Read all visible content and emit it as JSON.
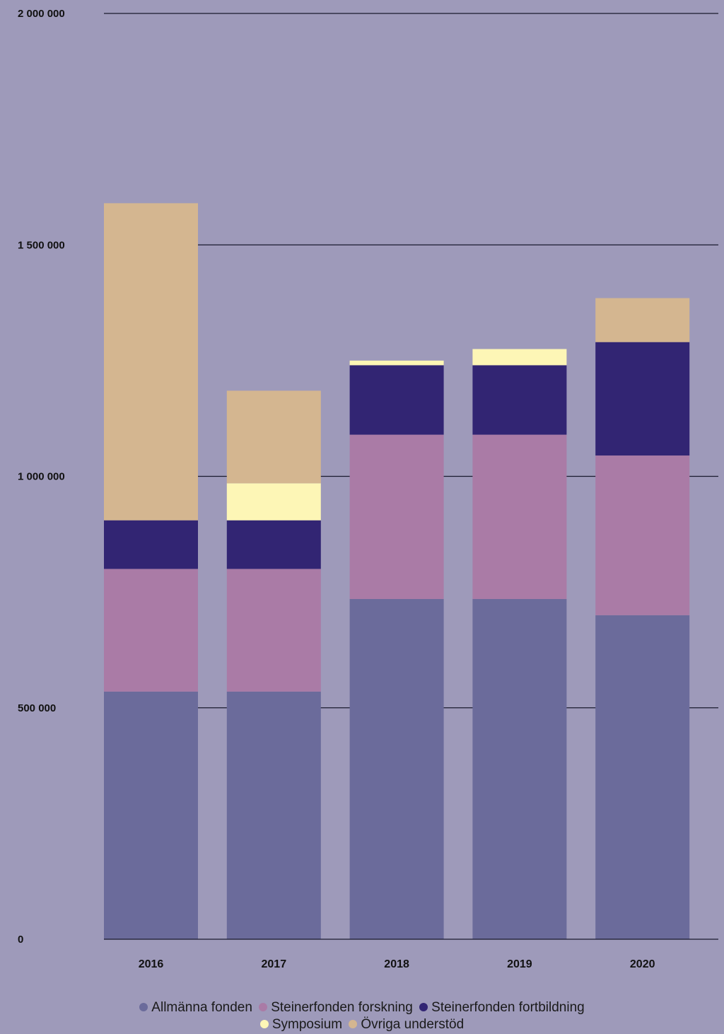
{
  "chart_data": {
    "type": "bar",
    "stacked": true,
    "title": "",
    "xlabel": "",
    "ylabel": "",
    "ylim": [
      0,
      2000000
    ],
    "yticks": [
      0,
      500000,
      1000000,
      1500000,
      2000000
    ],
    "ytick_labels": [
      "0",
      "500 000",
      "1 000 000",
      "1 500 000",
      "2 000 000"
    ],
    "grid": true,
    "legend_position": "bottom",
    "categories": [
      "2016",
      "2017",
      "2018",
      "2019",
      "2020"
    ],
    "series": [
      {
        "name": "Allmänna fonden",
        "color": "#6b6b9b",
        "values": [
          535000,
          535000,
          735000,
          735000,
          700000
        ]
      },
      {
        "name": "Steinerfonden forskning",
        "color": "#aa7ba6",
        "values": [
          265000,
          265000,
          355000,
          355000,
          345000
        ]
      },
      {
        "name": "Steinerfonden fortbildning",
        "color": "#322573",
        "values": [
          105000,
          105000,
          150000,
          150000,
          245000
        ]
      },
      {
        "name": "Symposium",
        "color": "#fdf6b6",
        "values": [
          0,
          80000,
          10000,
          35000,
          0
        ]
      },
      {
        "name": "Övriga understöd",
        "color": "#d4b690",
        "values": [
          685000,
          200000,
          0,
          0,
          95000
        ]
      }
    ]
  }
}
